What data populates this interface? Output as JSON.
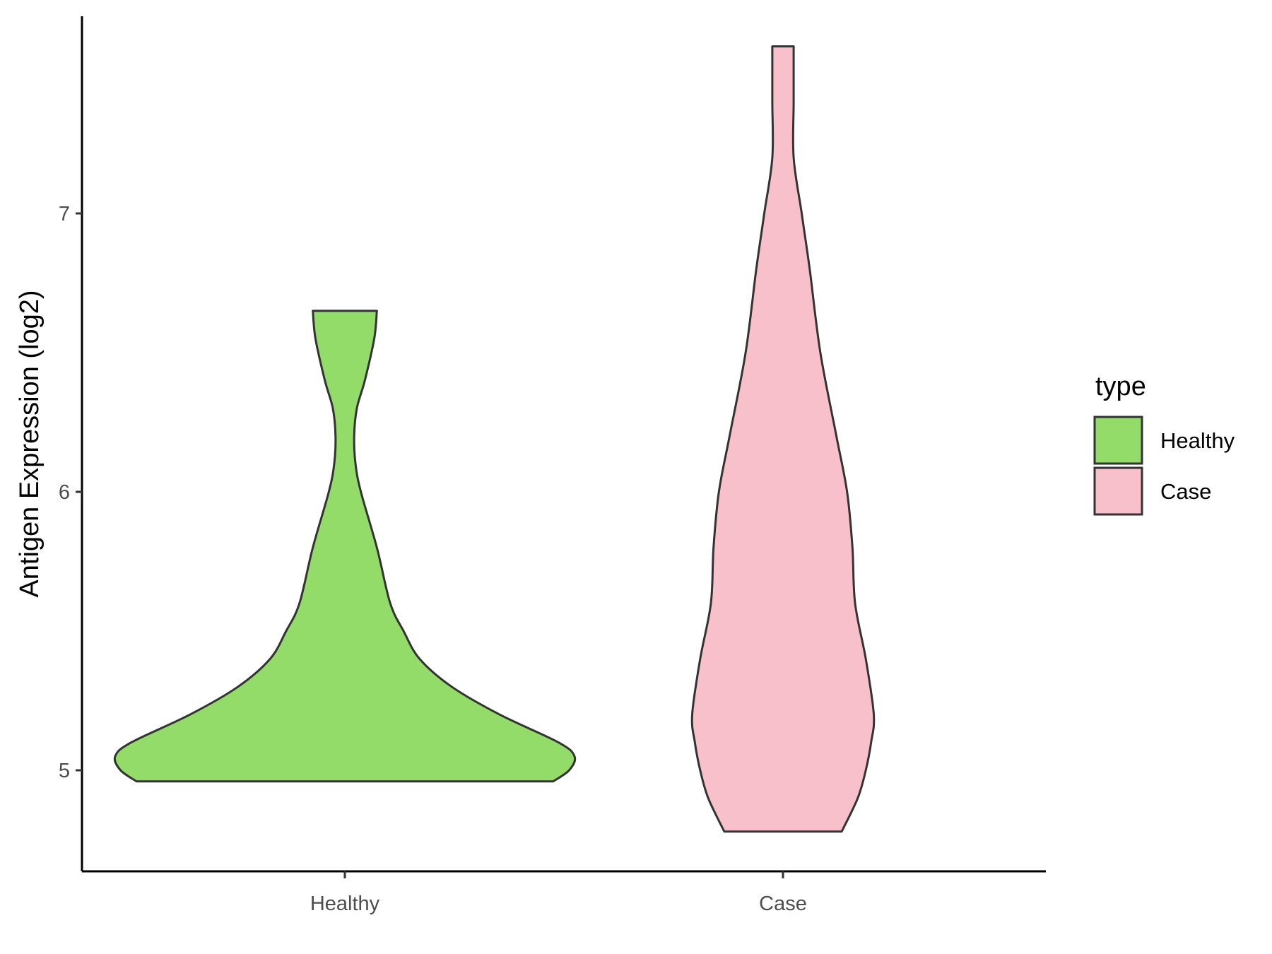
{
  "chart_data": {
    "type": "violin",
    "title": "",
    "xlabel": "",
    "ylabel": "Antigen Expression (log2)",
    "categories": [
      "Healthy",
      "Case"
    ],
    "y_ticks": [
      5,
      6,
      7
    ],
    "ylim": [
      4.63,
      7.7
    ],
    "grid": false,
    "legend": {
      "title": "type",
      "position": "right",
      "entries": [
        {
          "label": "Healthy",
          "color": "#93dc6a"
        },
        {
          "label": "Case",
          "color": "#f8c0cb"
        }
      ]
    },
    "series": [
      {
        "category": "Healthy",
        "color": "#93dc6a",
        "min": 4.96,
        "max": 6.65,
        "density_profile": [
          [
            4.96,
            0.78
          ],
          [
            5.0,
            0.84
          ],
          [
            5.05,
            0.86
          ],
          [
            5.1,
            0.8
          ],
          [
            5.2,
            0.58
          ],
          [
            5.3,
            0.4
          ],
          [
            5.4,
            0.28
          ],
          [
            5.5,
            0.22
          ],
          [
            5.6,
            0.17
          ],
          [
            5.8,
            0.12
          ],
          [
            6.0,
            0.06
          ],
          [
            6.1,
            0.04
          ],
          [
            6.2,
            0.035
          ],
          [
            6.3,
            0.045
          ],
          [
            6.4,
            0.075
          ],
          [
            6.55,
            0.11
          ],
          [
            6.65,
            0.12
          ]
        ]
      },
      {
        "category": "Case",
        "color": "#f8c0cb",
        "min": 4.78,
        "max": 7.6,
        "density_profile": [
          [
            4.78,
            0.22
          ],
          [
            4.9,
            0.28
          ],
          [
            5.0,
            0.31
          ],
          [
            5.1,
            0.33
          ],
          [
            5.2,
            0.34
          ],
          [
            5.4,
            0.31
          ],
          [
            5.6,
            0.27
          ],
          [
            5.8,
            0.26
          ],
          [
            6.0,
            0.24
          ],
          [
            6.2,
            0.2
          ],
          [
            6.5,
            0.14
          ],
          [
            6.8,
            0.1
          ],
          [
            7.0,
            0.07
          ],
          [
            7.2,
            0.04
          ],
          [
            7.4,
            0.04
          ],
          [
            7.6,
            0.04
          ]
        ]
      }
    ]
  }
}
